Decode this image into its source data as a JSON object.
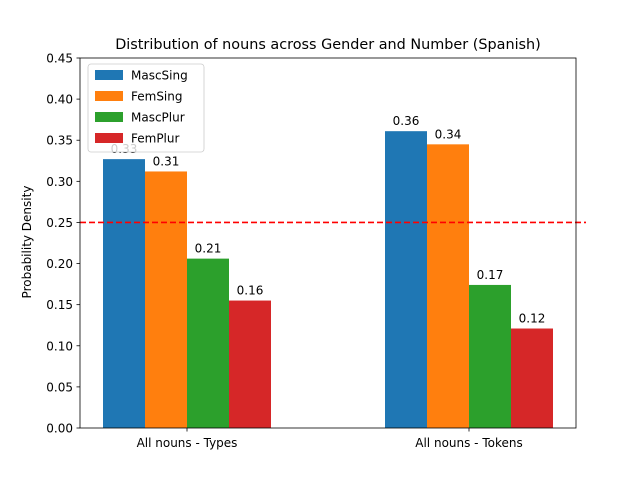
{
  "chart_data": {
    "type": "bar",
    "title": "Distribution of nouns across Gender and Number (Spanish)",
    "xlabel": "",
    "ylabel": "Probability Density",
    "categories": [
      "All nouns - Types",
      "All nouns - Tokens"
    ],
    "series": [
      {
        "name": "MascSing",
        "color": "#1f77b4",
        "values": [
          0.327,
          0.361
        ],
        "labels": [
          "0.33",
          "0.36"
        ]
      },
      {
        "name": "FemSing",
        "color": "#ff7f0e",
        "values": [
          0.312,
          0.345
        ],
        "labels": [
          "0.31",
          "0.34"
        ]
      },
      {
        "name": "MascPlur",
        "color": "#2ca02c",
        "values": [
          0.206,
          0.174
        ],
        "labels": [
          "0.21",
          "0.17"
        ]
      },
      {
        "name": "FemPlur",
        "color": "#d62728",
        "values": [
          0.155,
          0.121
        ],
        "labels": [
          "0.16",
          "0.12"
        ]
      }
    ],
    "ylim": [
      0,
      0.45
    ],
    "yticks": [
      "0.00",
      "0.05",
      "0.10",
      "0.15",
      "0.20",
      "0.25",
      "0.30",
      "0.35",
      "0.40",
      "0.45"
    ],
    "reference_line": {
      "value": 0.25,
      "color": "#ff0000",
      "style": "dashed"
    },
    "legend_position": "top-left",
    "grid": false
  }
}
